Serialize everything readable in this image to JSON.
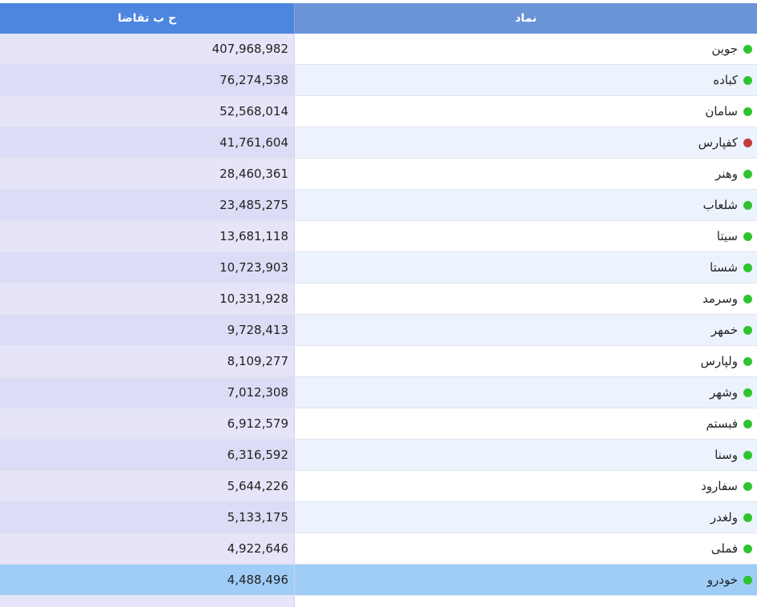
{
  "header": {
    "demand_label": "ح ب تقاضا",
    "symbol_label": "نماد"
  },
  "status_colors": {
    "green": "#2fc42f",
    "red": "#c23b3b"
  },
  "rows": [
    {
      "symbol": "جوین",
      "demand": "407,968,982",
      "status": "green"
    },
    {
      "symbol": "کباده",
      "demand": "76,274,538",
      "status": "green"
    },
    {
      "symbol": "سامان",
      "demand": "52,568,014",
      "status": "green"
    },
    {
      "symbol": "کفپارس",
      "demand": "41,761,604",
      "status": "red"
    },
    {
      "symbol": "وهنر",
      "demand": "28,460,361",
      "status": "green"
    },
    {
      "symbol": "شلعاب",
      "demand": "23,485,275",
      "status": "green"
    },
    {
      "symbol": "سیتا",
      "demand": "13,681,118",
      "status": "green"
    },
    {
      "symbol": "شستا",
      "demand": "10,723,903",
      "status": "green"
    },
    {
      "symbol": "وسرمد",
      "demand": "10,331,928",
      "status": "green"
    },
    {
      "symbol": "خمهر",
      "demand": "9,728,413",
      "status": "green"
    },
    {
      "symbol": "ولپارس",
      "demand": "8,109,277",
      "status": "green"
    },
    {
      "symbol": "وشهر",
      "demand": "7,012,308",
      "status": "green"
    },
    {
      "symbol": "فبستم",
      "demand": "6,912,579",
      "status": "green"
    },
    {
      "symbol": "وسنا",
      "demand": "6,316,592",
      "status": "green"
    },
    {
      "symbol": "سفارود",
      "demand": "5,644,226",
      "status": "green"
    },
    {
      "symbol": "ولغدر",
      "demand": "5,133,175",
      "status": "green"
    },
    {
      "symbol": "فملی",
      "demand": "4,922,646",
      "status": "green"
    },
    {
      "symbol": "خودرو",
      "demand": "4,488,496",
      "status": "green",
      "selected": true
    }
  ]
}
